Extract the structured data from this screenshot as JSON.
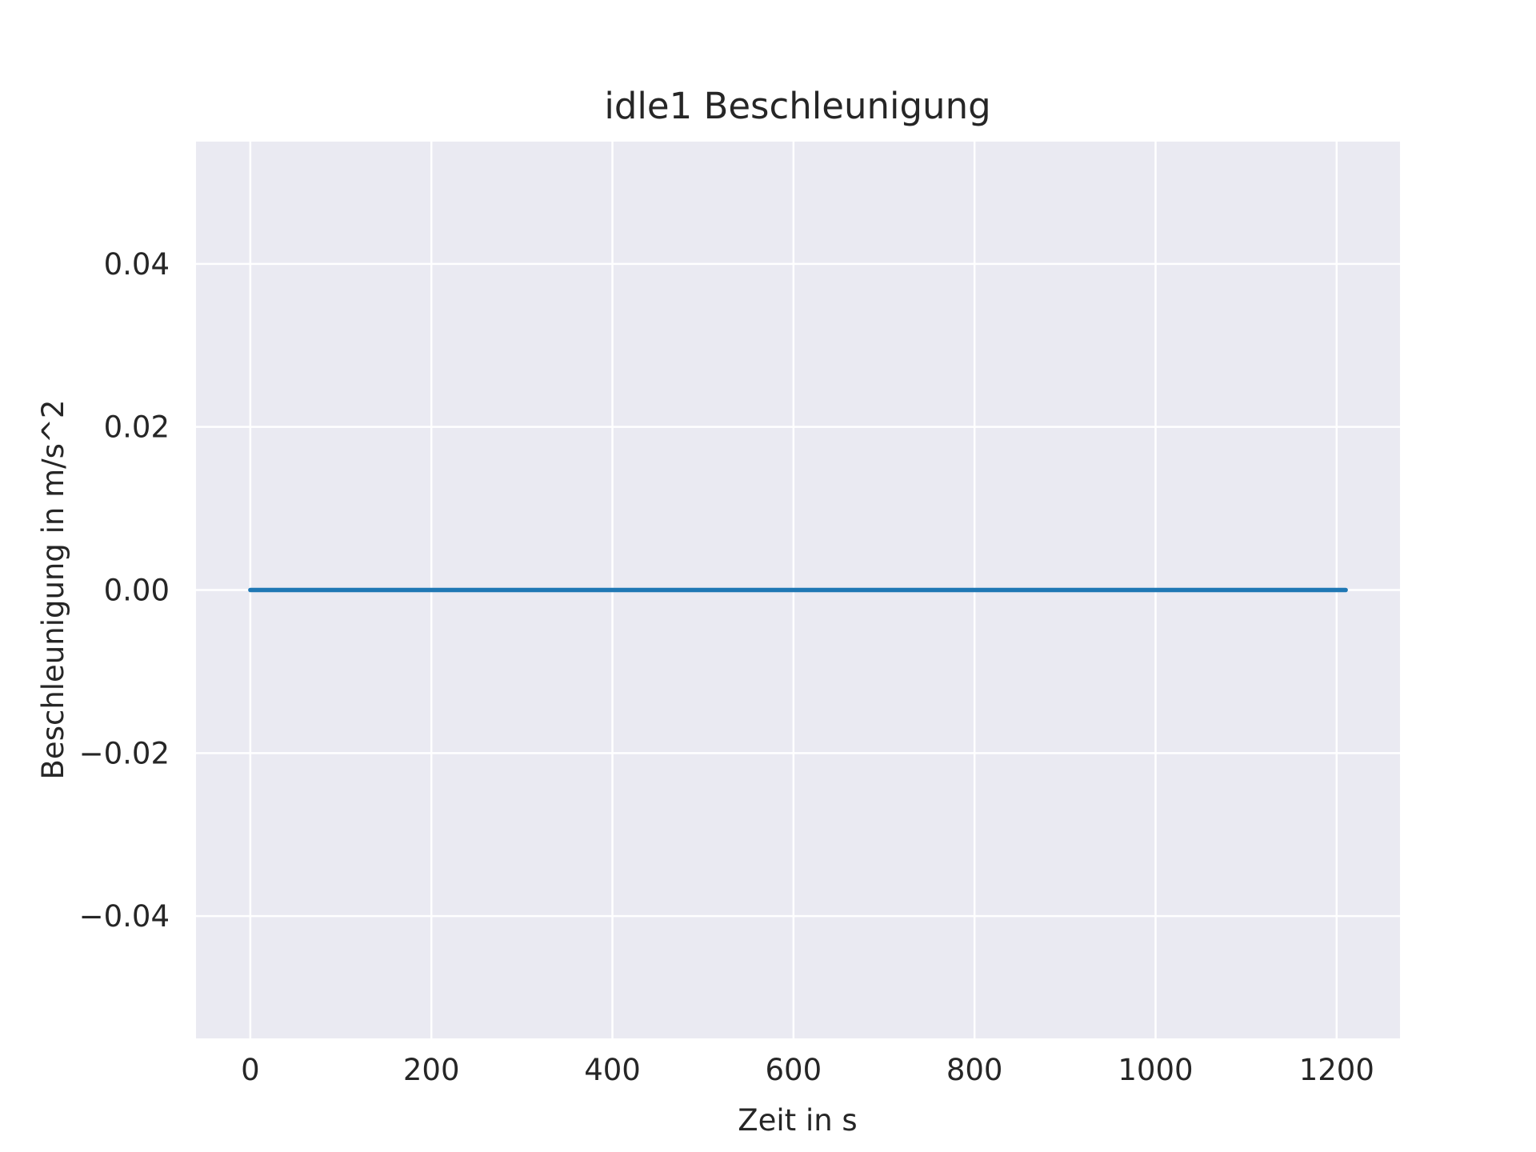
{
  "chart_data": {
    "type": "line",
    "title": "idle1 Beschleunigung",
    "xlabel": "Zeit in s",
    "ylabel": "Beschleunigung in m/s^2",
    "xlim": [
      -60,
      1270
    ],
    "ylim": [
      -0.055,
      0.055
    ],
    "x_ticks": [
      0,
      200,
      400,
      600,
      800,
      1000,
      1200
    ],
    "x_tick_labels": [
      "0",
      "200",
      "400",
      "600",
      "800",
      "1000",
      "1200"
    ],
    "y_ticks": [
      0.04,
      0.02,
      0.0,
      -0.02,
      -0.04
    ],
    "y_tick_labels": [
      "0.04",
      "0.02",
      "0.00",
      "−0.02",
      "−0.04"
    ],
    "grid": true,
    "legend": "none",
    "series": [
      {
        "x": [
          0,
          1210
        ],
        "y": [
          0,
          0
        ],
        "color": "#1f77b4"
      }
    ]
  },
  "colors": {
    "plot_background": "#eaeaf2",
    "grid": "#ffffff",
    "line": "#1f77b4",
    "text": "#262626"
  }
}
